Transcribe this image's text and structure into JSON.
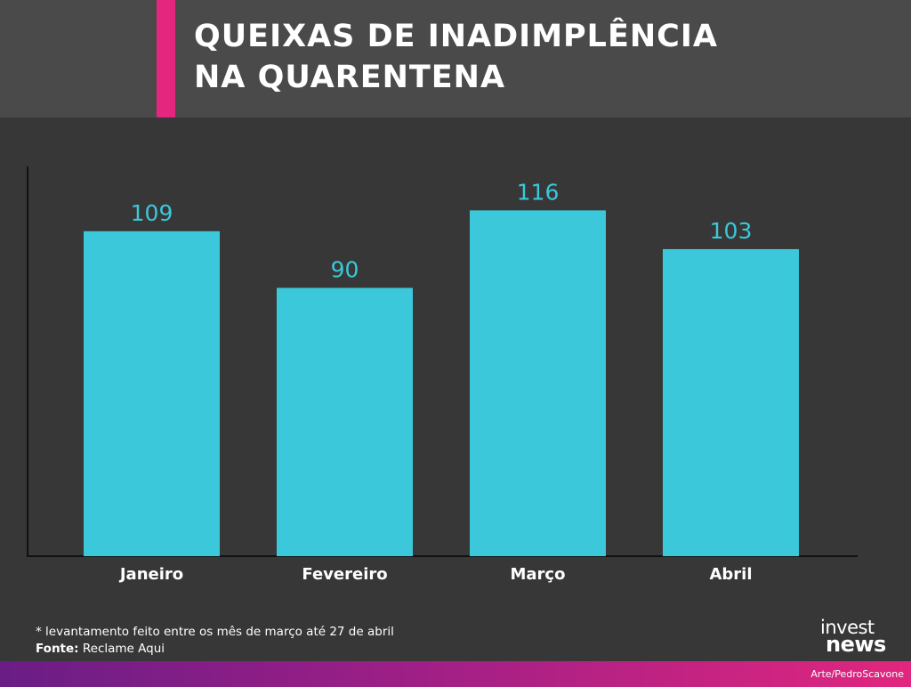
{
  "header": {
    "title_lines": [
      "QUEIXAS DE INADIMPLÊNCIA",
      "NA QUARENTENA"
    ]
  },
  "chart_data": {
    "type": "bar",
    "title": "QUEIXAS DE INADIMPLÊNCIA NA QUARENTENA",
    "categories": [
      "Janeiro",
      "Fevereiro",
      "Março",
      "Abril"
    ],
    "values": [
      109,
      90,
      116,
      103
    ],
    "value_labels": [
      "109",
      "90",
      "116",
      "103"
    ],
    "xlabel": "",
    "ylabel": "",
    "ylim": [
      0,
      130
    ],
    "grid": false,
    "bar_color": "#3ac8da",
    "label_color": "#3ac8da"
  },
  "footer": {
    "note": "* levantamento feito entre os mês de março até 27 de abril",
    "source_label": "Fonte:",
    "source_value": " Reclame Aqui",
    "credit": "Arte/PedroScavone",
    "logo_line1": "invest",
    "logo_line2": "news"
  },
  "colors": {
    "background": "#373737",
    "header_background": "#4a4a4a",
    "accent": "#e5267e",
    "bar": "#3ac8da"
  }
}
